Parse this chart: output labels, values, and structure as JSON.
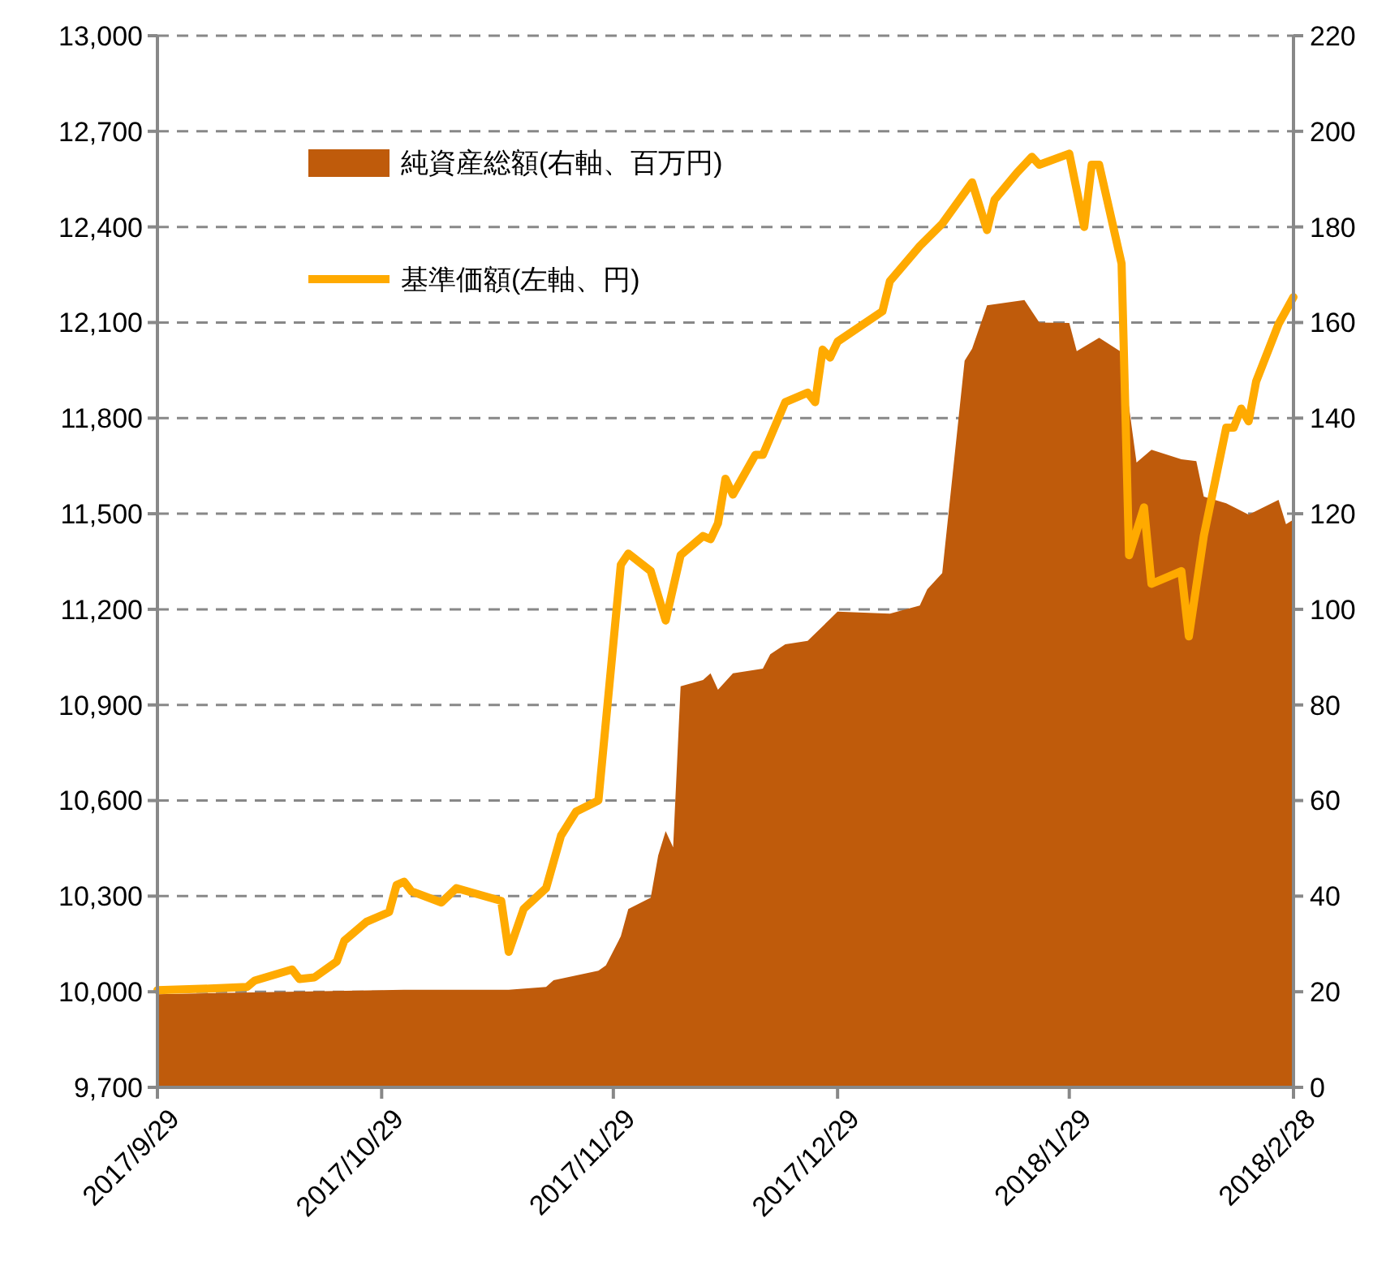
{
  "chart_data": {
    "type": "line",
    "legend": "top left",
    "grid": "y",
    "xlim": [
      "2017-09-29",
      "2018-02-28"
    ],
    "xticks": [
      {
        "value": "2017-09-29",
        "label": "2017/9/29"
      },
      {
        "value": "2017-10-29",
        "label": "2017/10/29"
      },
      {
        "value": "2017-11-29",
        "label": "2017/11/29"
      },
      {
        "value": "2017-12-29",
        "label": "2017/12/29"
      },
      {
        "value": "2018-01-29",
        "label": "2018/1/29"
      },
      {
        "value": "2018-02-28",
        "label": "2018/2/28"
      }
    ],
    "ylim": [
      9700,
      13000
    ],
    "yticks": [
      {
        "value": 9700,
        "label": "9,700"
      },
      {
        "value": 10000,
        "label": "10,000"
      },
      {
        "value": 10300,
        "label": "10,300"
      },
      {
        "value": 10600,
        "label": "10,600"
      },
      {
        "value": 10900,
        "label": "10,900"
      },
      {
        "value": 11200,
        "label": "11,200"
      },
      {
        "value": 11500,
        "label": "11,500"
      },
      {
        "value": 11800,
        "label": "11,800"
      },
      {
        "value": 12100,
        "label": "12,100"
      },
      {
        "value": 12400,
        "label": "12,400"
      },
      {
        "value": 12700,
        "label": "12,700"
      },
      {
        "value": 13000,
        "label": "13,000"
      }
    ],
    "y2lim": [
      0,
      220
    ],
    "y2ticks": [
      0,
      20,
      40,
      60,
      80,
      100,
      120,
      140,
      160,
      180,
      200,
      220
    ],
    "series": [
      {
        "name": "純資産総額(右軸、百万円)",
        "type": "area",
        "axis": "y2",
        "color": "#bf5b0b",
        "x": [
          "2017-09-29",
          "2017-11-01",
          "2017-11-15",
          "2017-11-20",
          "2017-11-21",
          "2017-11-27",
          "2017-11-28",
          "2017-11-30",
          "2017-12-01",
          "2017-12-04",
          "2017-12-05",
          "2017-12-06",
          "2017-12-07",
          "2017-12-08",
          "2017-12-11",
          "2017-12-12",
          "2017-12-13",
          "2017-12-15",
          "2017-12-19",
          "2017-12-20",
          "2017-12-22",
          "2017-12-25",
          "2017-12-29",
          "2018-01-05",
          "2018-01-09",
          "2018-01-10",
          "2018-01-12",
          "2018-01-15",
          "2018-01-16",
          "2018-01-18",
          "2018-01-23",
          "2018-01-25",
          "2018-01-29",
          "2018-01-30",
          "2018-02-02",
          "2018-02-05",
          "2018-02-07",
          "2018-02-09",
          "2018-02-13",
          "2018-02-15",
          "2018-02-16",
          "2018-02-19",
          "2018-02-22",
          "2018-02-26",
          "2018-02-27",
          "2018-02-28"
        ],
        "values": [
          19.5,
          20.4,
          20.4,
          21,
          22.4,
          24.4,
          25.5,
          31.6,
          37.3,
          39.7,
          48.5,
          53.6,
          50.2,
          83.9,
          85.2,
          86.6,
          83.2,
          86.6,
          87.6,
          90.6,
          92.7,
          93.4,
          99.5,
          99.1,
          100.8,
          104.2,
          107.6,
          152,
          154.5,
          163.6,
          164.7,
          160,
          159.9,
          154,
          156.8,
          153.8,
          130.7,
          133.4,
          131.4,
          131,
          123.6,
          122.2,
          119.8,
          122.9,
          117.8,
          118.8
        ]
      },
      {
        "name": "基準価額(左軸、円)",
        "type": "line",
        "color": "#ffaa00",
        "x": [
          "2017-09-29",
          "2017-10-06",
          "2017-10-11",
          "2017-10-12",
          "2017-10-17",
          "2017-10-18",
          "2017-10-20",
          "2017-10-23",
          "2017-10-24",
          "2017-10-27",
          "2017-10-30",
          "2017-10-31",
          "2017-11-01",
          "2017-11-02",
          "2017-11-06",
          "2017-11-08",
          "2017-11-14",
          "2017-11-15",
          "2017-11-17",
          "2017-11-20",
          "2017-11-22",
          "2017-11-24",
          "2017-11-27",
          "2017-11-30",
          "2017-12-01",
          "2017-12-04",
          "2017-12-06",
          "2017-12-08",
          "2017-12-11",
          "2017-12-12",
          "2017-12-13",
          "2017-12-14",
          "2017-12-15",
          "2017-12-18",
          "2017-12-19",
          "2017-12-22",
          "2017-12-25",
          "2017-12-26",
          "2017-12-27",
          "2017-12-28",
          "2017-12-29",
          "2018-01-04",
          "2018-01-05",
          "2018-01-09",
          "2018-01-12",
          "2018-01-16",
          "2018-01-18",
          "2018-01-19",
          "2018-01-22",
          "2018-01-24",
          "2018-01-25",
          "2018-01-29",
          "2018-01-31",
          "2018-02-01",
          "2018-02-02",
          "2018-02-05",
          "2018-02-06",
          "2018-02-08",
          "2018-02-09",
          "2018-02-13",
          "2018-02-14",
          "2018-02-16",
          "2018-02-19",
          "2018-02-20",
          "2018-02-21",
          "2018-02-22",
          "2018-02-23",
          "2018-02-26",
          "2018-02-28"
        ],
        "values": [
          10005,
          10010,
          10015,
          10035,
          10070,
          10040,
          10045,
          10095,
          10160,
          10220,
          10250,
          10335,
          10345,
          10315,
          10280,
          10325,
          10285,
          10125,
          10260,
          10325,
          10490,
          10565,
          10600,
          11340,
          11375,
          11320,
          11165,
          11370,
          11430,
          11420,
          11470,
          11610,
          11560,
          11685,
          11685,
          11850,
          11880,
          11850,
          12015,
          11990,
          12040,
          12135,
          12230,
          12340,
          12410,
          12540,
          12390,
          12485,
          12570,
          12620,
          12595,
          12630,
          12400,
          12595,
          12595,
          12285,
          11370,
          11520,
          11280,
          11320,
          11115,
          11430,
          11770,
          11770,
          11830,
          11790,
          11915,
          12095,
          12180
        ]
      }
    ]
  }
}
